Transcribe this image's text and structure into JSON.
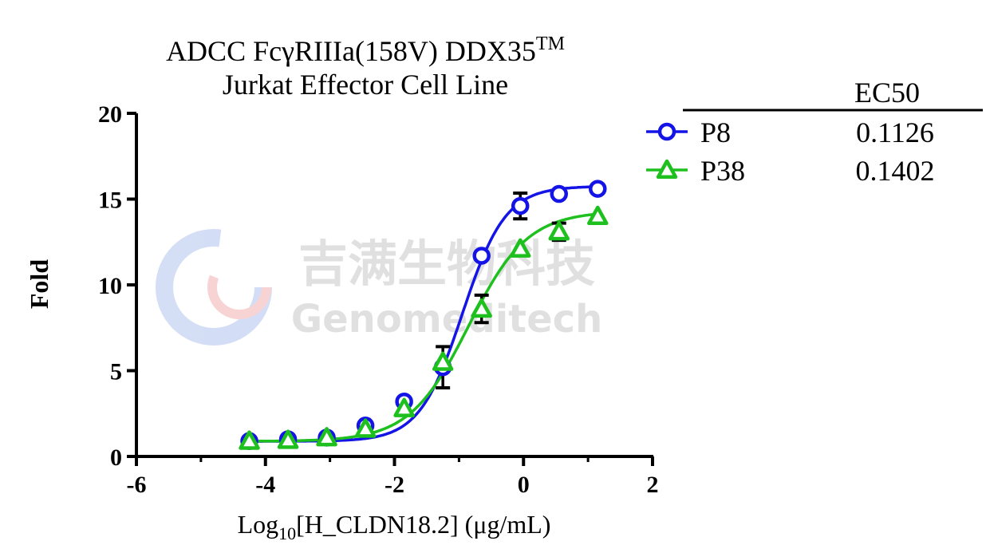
{
  "chart_data": {
    "type": "scatter",
    "title_line1": "ADCC FcγRIIIa(158V) DDX35",
    "title_superscript": "TM",
    "title_line2": "Jurkat Effector Cell Line",
    "xlabel_prefix": "Log",
    "xlabel_subscript": "10",
    "xlabel_suffix": "[H_CLDN18.2] (μg/mL)",
    "ylabel": "Fold",
    "xlim": [
      -6,
      2
    ],
    "ylim": [
      0,
      20
    ],
    "xticks": [
      -6,
      -4,
      -2,
      0,
      2
    ],
    "yticks": [
      0,
      5,
      10,
      15,
      20
    ],
    "legend_header": "EC50",
    "legend_position": "right",
    "watermark_cn": "吉满生物科技",
    "watermark_en": "Genomeditech",
    "series": [
      {
        "name": "P8",
        "ec50": "0.1126",
        "marker": "circle",
        "color": "#1414e6",
        "x": [
          -4.25,
          -3.65,
          -3.05,
          -2.45,
          -1.85,
          -1.25,
          -0.65,
          -0.05,
          0.55,
          1.15
        ],
        "y": [
          0.9,
          1.0,
          1.1,
          1.8,
          3.2,
          5.2,
          11.7,
          14.6,
          15.3,
          15.6
        ],
        "err": [
          0.1,
          0.1,
          0.1,
          0.1,
          0.15,
          1.2,
          0.2,
          0.75,
          0.2,
          0.15
        ],
        "fit": {
          "bottom": 0.88,
          "top": 15.75,
          "logec50": -0.948,
          "hill": 1.3
        }
      },
      {
        "name": "P38",
        "ec50": "0.1402",
        "marker": "triangle",
        "color": "#1ec01e",
        "x": [
          -4.25,
          -3.65,
          -3.05,
          -2.45,
          -1.85,
          -1.25,
          -0.65,
          -0.05,
          0.55,
          1.15
        ],
        "y": [
          0.9,
          0.95,
          1.1,
          1.6,
          2.8,
          5.5,
          8.6,
          12.1,
          13.1,
          14.0
        ],
        "err": [
          0.1,
          0.1,
          0.1,
          0.1,
          0.1,
          0.2,
          0.8,
          0.2,
          0.5,
          0.15
        ],
        "fit": {
          "bottom": 0.88,
          "top": 14.3,
          "logec50": -0.853,
          "hill": 0.95
        }
      }
    ]
  }
}
